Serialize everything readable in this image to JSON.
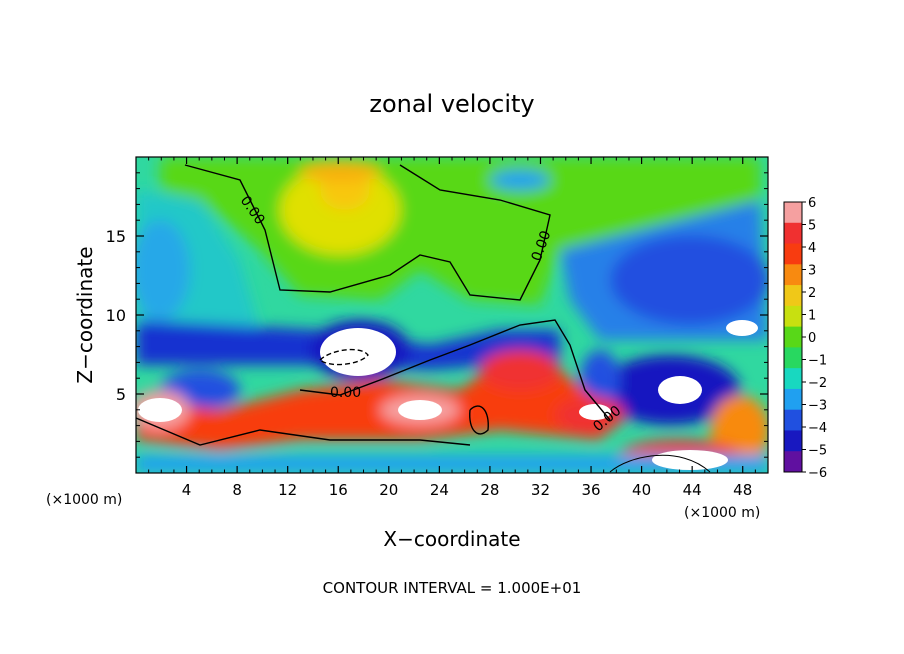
{
  "chart_data": {
    "type": "heatmap",
    "title": "zonal velocity",
    "xlabel": "X−coordinate",
    "ylabel": "Z−coordinate",
    "x_unit_left": "(×1000 m)",
    "x_unit_right": "(×1000 m)",
    "footer": "CONTOUR INTERVAL = 1.000E+01",
    "xlim": [
      0,
      50
    ],
    "ylim": [
      0,
      20
    ],
    "x_ticks": [
      4,
      8,
      12,
      16,
      20,
      24,
      28,
      32,
      36,
      40,
      44,
      48
    ],
    "x_tick_labels": [
      "4",
      "8",
      "12",
      "16",
      "20",
      "24",
      "28",
      "32",
      "36",
      "40",
      "44",
      "48"
    ],
    "y_ticks": [
      5,
      10,
      15
    ],
    "y_tick_labels": [
      "5",
      "10",
      "15"
    ],
    "contour_labels": [
      "0.00",
      "0.00",
      "0.00",
      "0.00"
    ],
    "colorbar": {
      "levels": [
        6,
        5,
        4,
        3,
        2,
        1,
        0,
        -1,
        -2,
        -3,
        -4,
        -5,
        -6
      ],
      "labels": [
        "6",
        "5",
        "4",
        "3",
        "2",
        "1",
        "0",
        "−1",
        "−2",
        "−3",
        "−4",
        "−5",
        "−6"
      ],
      "colors": [
        "#f5a0a0",
        "#f03030",
        "#f83c10",
        "#f88a10",
        "#f0c818",
        "#c8e010",
        "#58d818",
        "#28d860",
        "#18d8c0",
        "#20a0f0",
        "#2050e0",
        "#1818c0",
        "#6010a0"
      ]
    },
    "field_regions": [
      {
        "name": "upper-left",
        "value": -1.5
      },
      {
        "name": "upper-middle",
        "value": 1.5
      },
      {
        "name": "upper-right",
        "value": -3.5
      },
      {
        "name": "mid-layer",
        "value": -4.5
      },
      {
        "name": "lower-layer",
        "value": 4
      }
    ]
  }
}
